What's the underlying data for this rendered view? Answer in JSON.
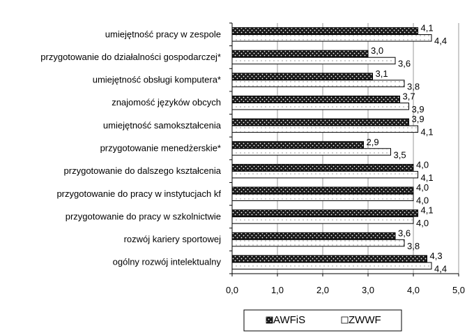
{
  "chart_data": {
    "type": "bar",
    "orientation": "horizontal",
    "categories": [
      "umiejętność pracy w zespole",
      "przygotowanie do działalności gospodarczej*",
      "umiejętność obsługi komputera*",
      "znajomość języków obcych",
      "umiejętność samokształcenia",
      "przygotowanie menedżerskie*",
      "przygotowanie do dalszego kształcenia",
      "przygotowanie do pracy w instytucjach kf",
      "przygotowanie do pracy w szkolnictwie",
      "rozwój kariery sportowej",
      "ogólny rozwój intelektualny"
    ],
    "series": [
      {
        "name": "AWFiS",
        "values": [
          4.1,
          3.0,
          3.1,
          3.7,
          3.9,
          2.9,
          4.0,
          4.0,
          4.1,
          3.6,
          4.3
        ],
        "labels": [
          "4,1",
          "3,0",
          "3,1",
          "3,7",
          "3,9",
          "2,9",
          "4,0",
          "4,0",
          "4,1",
          "3,6",
          "4,3"
        ],
        "fill": "#1a1a1a",
        "pattern": "dark-dotted"
      },
      {
        "name": "ZWWF",
        "values": [
          4.4,
          3.6,
          3.8,
          3.9,
          4.1,
          3.5,
          4.1,
          4.0,
          4.0,
          3.8,
          4.4
        ],
        "labels": [
          "4,4",
          "3,6",
          "3,8",
          "3,9",
          "4,1",
          "3,5",
          "4,1",
          "4,0",
          "4,0",
          "3,8",
          "4,4"
        ],
        "fill": "#ffffff",
        "pattern": "light-dotted"
      }
    ],
    "xlim": [
      0,
      5
    ],
    "xticks": [
      0,
      1,
      2,
      3,
      4,
      5
    ],
    "xtick_labels": [
      "0,0",
      "1,0",
      "2,0",
      "3,0",
      "4,0",
      "5,0"
    ],
    "grid": "vertical",
    "legend": "bottom-center"
  }
}
